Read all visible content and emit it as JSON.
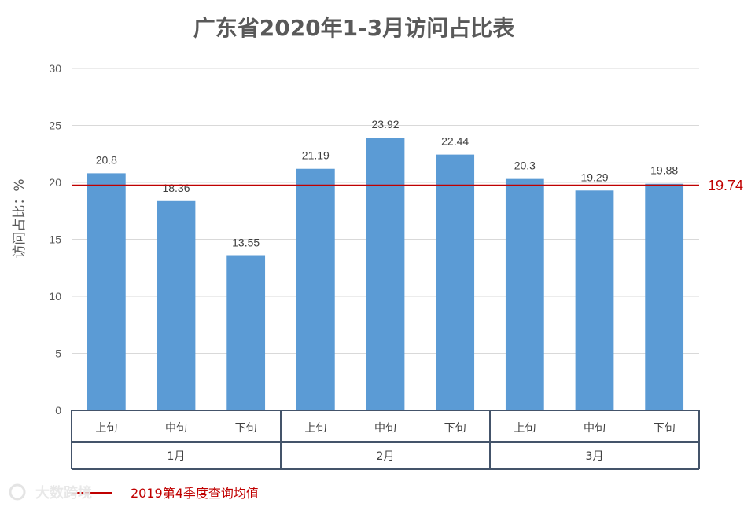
{
  "chart_data": {
    "type": "bar",
    "title": "广东省2020年1-3月访问占比表",
    "ylabel": "访问占比：%",
    "xlabel": "",
    "ylim": [
      0,
      30
    ],
    "yticks": [
      0,
      5,
      10,
      15,
      20,
      25,
      30
    ],
    "grid": true,
    "categories": [
      {
        "sub": "上旬",
        "group": "1月"
      },
      {
        "sub": "中旬",
        "group": "1月"
      },
      {
        "sub": "下旬",
        "group": "1月"
      },
      {
        "sub": "上旬",
        "group": "2月"
      },
      {
        "sub": "中旬",
        "group": "2月"
      },
      {
        "sub": "下旬",
        "group": "2月"
      },
      {
        "sub": "上旬",
        "group": "3月"
      },
      {
        "sub": "中旬",
        "group": "3月"
      },
      {
        "sub": "下旬",
        "group": "3月"
      }
    ],
    "groups": [
      "1月",
      "2月",
      "3月"
    ],
    "values": [
      20.8,
      18.36,
      13.55,
      21.19,
      23.92,
      22.44,
      20.3,
      19.29,
      19.88
    ],
    "value_labels": [
      "20.8",
      "18.36",
      "13.55",
      "21.19",
      "23.92",
      "22.44",
      "20.3",
      "19.29",
      "19.88"
    ],
    "reference_line": {
      "value": 19.74,
      "label": "19.74",
      "legend": "2019第4季度查询均值"
    },
    "legend_position": "bottom-left",
    "colors": {
      "bar": "#5b9bd5",
      "reference": "#c00000",
      "grid": "#d9d9d9",
      "table_border": "#44546a"
    }
  },
  "watermark": {
    "text": "大数跨境"
  }
}
